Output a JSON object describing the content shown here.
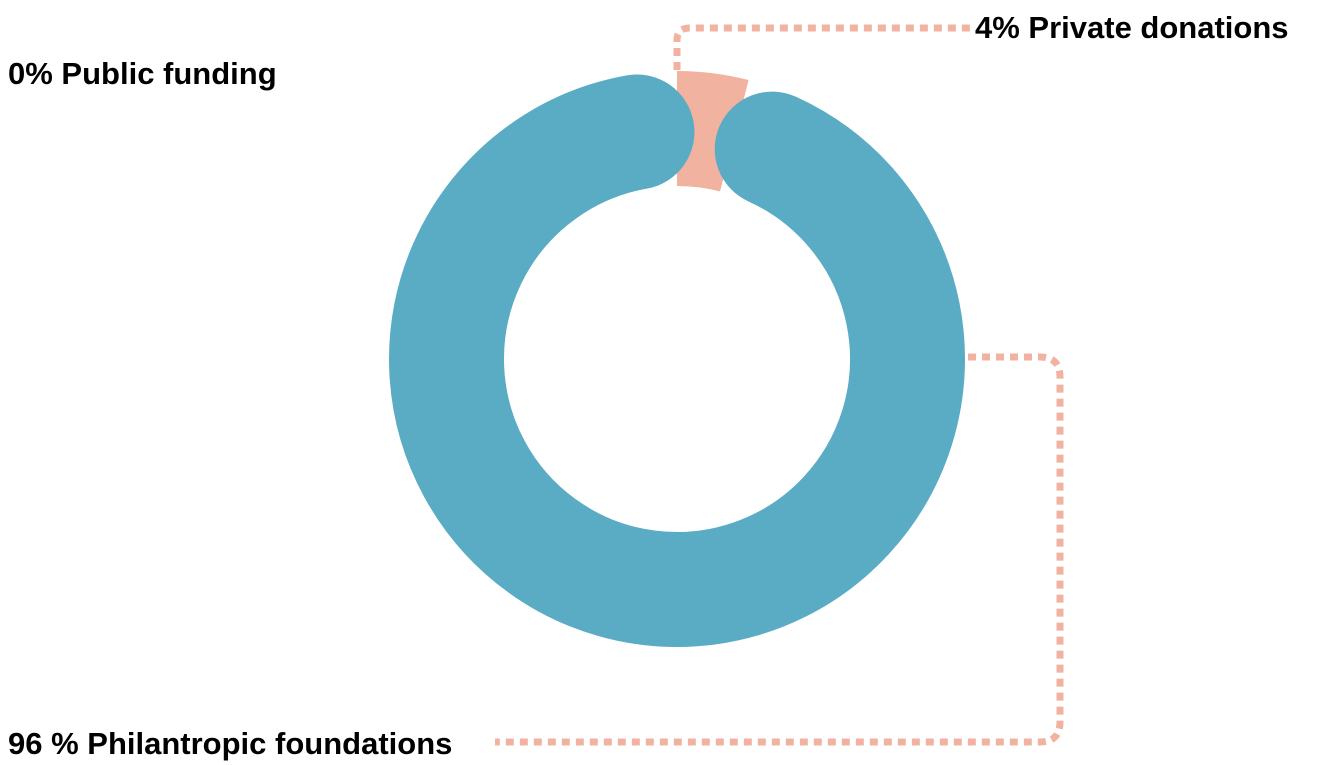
{
  "chart_data": {
    "type": "pie",
    "variant": "donut",
    "slices": [
      {
        "label": "0% Public funding",
        "value": 0,
        "color": "#f1b2a0"
      },
      {
        "label": "4% Private donations",
        "value": 4,
        "color": "#f1b2a0"
      },
      {
        "label": "96 % Philantropic foundations",
        "value": 96,
        "color": "#5aabc4"
      }
    ],
    "start_angle_degrees": 0,
    "direction": "clockwise",
    "legend": "none"
  },
  "colors": {
    "accent_blue": "#5aabc4",
    "accent_salmon": "#f1b2a0",
    "leader_line": "#f1b2a0",
    "text": "#000000",
    "background": "#ffffff"
  }
}
